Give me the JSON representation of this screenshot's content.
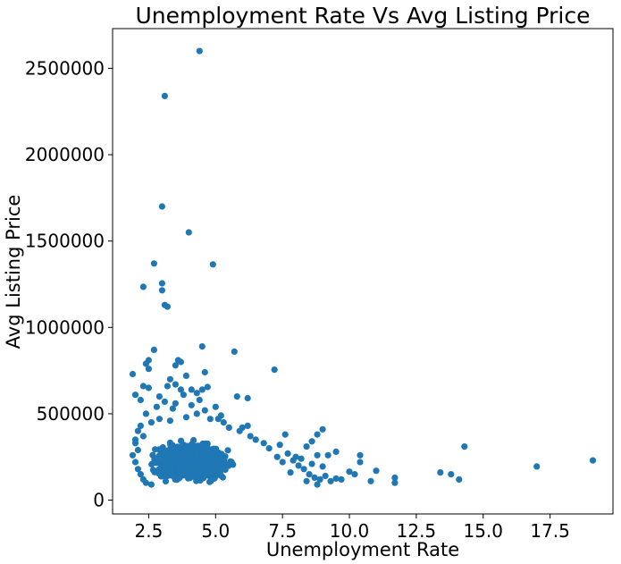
{
  "chart_data": {
    "type": "scatter",
    "title": "Unemployment Rate Vs Avg Listing Price",
    "xlabel": "Unemployment Rate",
    "ylabel": "Avg Listing Price",
    "xlim": [
      1.15,
      19.85
    ],
    "ylim": [
      -80000,
      2730000
    ],
    "xticks": [
      2.5,
      5.0,
      7.5,
      10.0,
      12.5,
      15.0,
      17.5
    ],
    "xtick_labels": [
      "2.5",
      "5.0",
      "7.5",
      "10.0",
      "12.5",
      "15.0",
      "17.5"
    ],
    "yticks": [
      0,
      500000,
      1000000,
      1500000,
      2000000,
      2500000
    ],
    "ytick_labels": [
      "0",
      "500000",
      "1000000",
      "1500000",
      "2000000",
      "2500000"
    ],
    "grid": false,
    "marker_color": "#1f77b4",
    "points": [
      [
        4.4,
        2600000
      ],
      [
        3.1,
        2340000
      ],
      [
        3.0,
        1700000
      ],
      [
        4.0,
        1550000
      ],
      [
        4.9,
        1365000
      ],
      [
        2.7,
        1370000
      ],
      [
        3.0,
        1255000
      ],
      [
        3.0,
        1215000
      ],
      [
        2.3,
        1235000
      ],
      [
        3.1,
        1130000
      ],
      [
        3.2,
        1120000
      ],
      [
        4.5,
        890000
      ],
      [
        2.7,
        870000
      ],
      [
        5.7,
        860000
      ],
      [
        3.6,
        810000
      ],
      [
        3.7,
        800000
      ],
      [
        2.5,
        810000
      ],
      [
        2.4,
        790000
      ],
      [
        3.5,
        780000
      ],
      [
        2.5,
        760000
      ],
      [
        7.2,
        755000
      ],
      [
        1.9,
        730000
      ],
      [
        4.6,
        740000
      ],
      [
        3.9,
        720000
      ],
      [
        3.3,
        700000
      ],
      [
        3.5,
        670000
      ],
      [
        3.2,
        660000
      ],
      [
        2.3,
        660000
      ],
      [
        2.5,
        650000
      ],
      [
        3.7,
        640000
      ],
      [
        4.1,
        640000
      ],
      [
        4.5,
        640000
      ],
      [
        4.7,
        655000
      ],
      [
        4.3,
        620000
      ],
      [
        2.0,
        610000
      ],
      [
        2.9,
        600000
      ],
      [
        3.8,
        610000
      ],
      [
        5.8,
        600000
      ],
      [
        6.2,
        590000
      ],
      [
        2.2,
        580000
      ],
      [
        3.1,
        570000
      ],
      [
        4.4,
        580000
      ],
      [
        3.5,
        560000
      ],
      [
        4.1,
        550000
      ],
      [
        2.8,
        540000
      ],
      [
        5.0,
        540000
      ],
      [
        3.4,
        530000
      ],
      [
        4.6,
        520000
      ],
      [
        2.4,
        500000
      ],
      [
        5.2,
        490000
      ],
      [
        5.1,
        470000
      ],
      [
        9.0,
        410000
      ],
      [
        6.2,
        430000
      ],
      [
        6.0,
        420000
      ],
      [
        8.8,
        380000
      ],
      [
        7.6,
        380000
      ],
      [
        8.6,
        340000
      ],
      [
        7.4,
        320000
      ],
      [
        8.4,
        310000
      ],
      [
        2.0,
        330000
      ],
      [
        9.5,
        280000
      ],
      [
        8.8,
        260000
      ],
      [
        9.2,
        260000
      ],
      [
        10.4,
        260000
      ],
      [
        10.4,
        220000
      ],
      [
        11.0,
        170000
      ],
      [
        10.2,
        150000
      ],
      [
        10.0,
        165000
      ],
      [
        11.7,
        130000
      ],
      [
        11.7,
        100000
      ],
      [
        10.8,
        110000
      ],
      [
        13.4,
        160000
      ],
      [
        13.8,
        150000
      ],
      [
        14.1,
        120000
      ],
      [
        14.3,
        310000
      ],
      [
        17.0,
        195000
      ],
      [
        19.1,
        230000
      ],
      [
        7.9,
        230000
      ],
      [
        8.1,
        200000
      ],
      [
        8.3,
        180000
      ],
      [
        8.5,
        150000
      ],
      [
        8.7,
        130000
      ],
      [
        8.9,
        120000
      ],
      [
        9.1,
        140000
      ],
      [
        9.3,
        110000
      ],
      [
        9.5,
        125000
      ],
      [
        9.7,
        120000
      ],
      [
        7.7,
        270000
      ],
      [
        8.0,
        250000
      ],
      [
        8.2,
        240000
      ],
      [
        8.6,
        210000
      ],
      [
        9.0,
        195000
      ],
      [
        7.3,
        250000
      ],
      [
        7.5,
        220000
      ],
      [
        7.8,
        160000
      ],
      [
        8.4,
        110000
      ],
      [
        8.8,
        90000
      ],
      [
        6.8,
        330000
      ],
      [
        7.0,
        300000
      ],
      [
        6.5,
        350000
      ],
      [
        6.3,
        370000
      ],
      [
        5.9,
        400000
      ],
      [
        5.5,
        420000
      ],
      [
        5.3,
        450000
      ],
      [
        4.8,
        470000
      ],
      [
        4.3,
        500000
      ],
      [
        3.9,
        480000
      ],
      [
        3.3,
        460000
      ],
      [
        2.9,
        470000
      ],
      [
        2.6,
        450000
      ],
      [
        2.2,
        430000
      ],
      [
        2.1,
        400000
      ],
      [
        2.3,
        370000
      ],
      [
        2.0,
        350000
      ],
      [
        2.1,
        290000
      ],
      [
        1.9,
        260000
      ],
      [
        2.0,
        220000
      ],
      [
        2.1,
        180000
      ],
      [
        2.2,
        150000
      ],
      [
        2.3,
        120000
      ],
      [
        2.4,
        100000
      ],
      [
        2.6,
        90000
      ]
    ],
    "cluster": {
      "x_range": [
        2.2,
        7.6
      ],
      "x_center": 4.1,
      "y_range": [
        70000,
        450000
      ],
      "y_center": 220000,
      "count": 1400
    }
  }
}
